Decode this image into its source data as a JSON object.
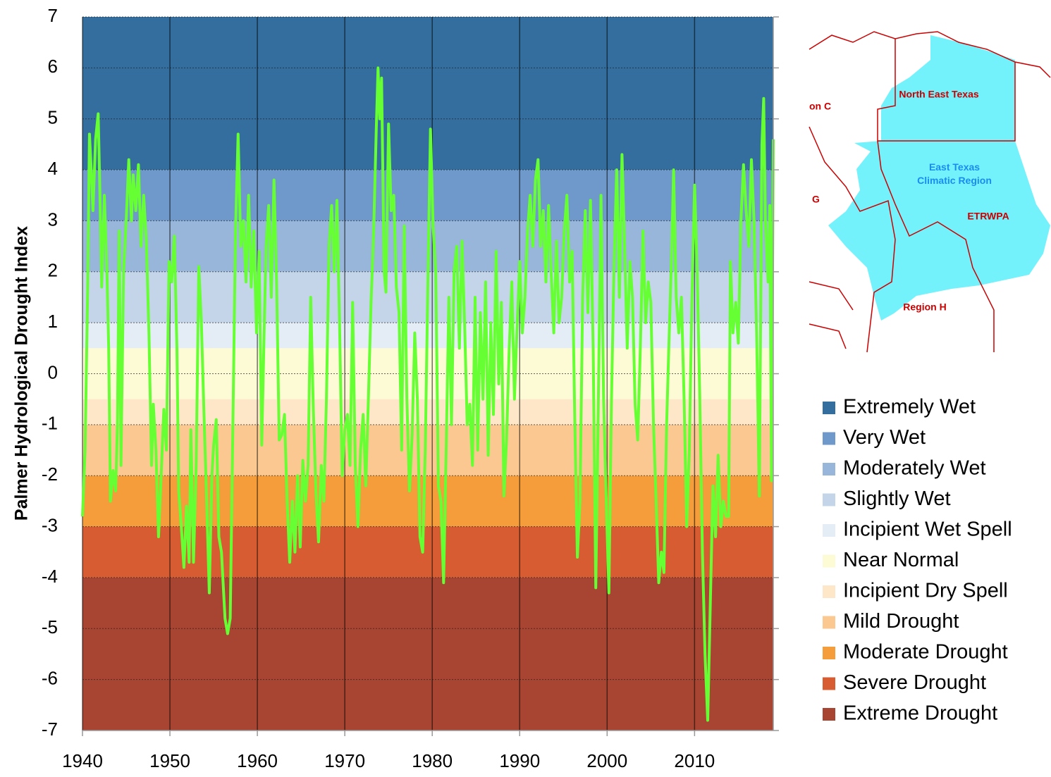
{
  "chart_data": {
    "type": "line",
    "ylabel": "Palmer Hydrological Drought Index",
    "xlim": [
      1940,
      2019
    ],
    "xticks": [
      1940,
      1950,
      1960,
      1970,
      1980,
      1990,
      2000,
      2010
    ],
    "ylim": [
      -7,
      7
    ],
    "yticks": [
      -7,
      -6,
      -5,
      -4,
      -3,
      -2,
      -1,
      0,
      1,
      2,
      3,
      4,
      5,
      6,
      7
    ],
    "grid": true,
    "line_color": "#66ff33",
    "bands": [
      {
        "name": "Extremely Wet",
        "color": "#336e9e",
        "range": [
          4,
          7
        ]
      },
      {
        "name": "Very Wet",
        "color": "#7099cb",
        "range": [
          3,
          4
        ]
      },
      {
        "name": "Moderately Wet",
        "color": "#98b5da",
        "range": [
          2,
          3
        ]
      },
      {
        "name": "Slightly Wet",
        "color": "#c4d5e9",
        "range": [
          1,
          2
        ]
      },
      {
        "name": "Incipient Wet Spell",
        "color": "#e4edf5",
        "range": [
          0.5,
          1
        ]
      },
      {
        "name": "Near Normal",
        "color": "#fdfbd5",
        "range": [
          -0.5,
          0.5
        ]
      },
      {
        "name": "Incipient Dry Spell",
        "color": "#fde7c8",
        "range": [
          -1,
          -0.5
        ]
      },
      {
        "name": "Mild Drought",
        "color": "#fbc891",
        "range": [
          -2,
          -1
        ]
      },
      {
        "name": "Moderate Drought",
        "color": "#f59c3b",
        "range": [
          -3,
          -2
        ]
      },
      {
        "name": "Severe Drought",
        "color": "#d85c31",
        "range": [
          -4,
          -3
        ]
      },
      {
        "name": "Extreme Drought",
        "color": "#a84532",
        "range": [
          -7,
          -4
        ]
      }
    ],
    "x": [
      1940.0,
      1940.3,
      1940.6,
      1940.8,
      1941.0,
      1941.2,
      1941.5,
      1941.8,
      1942.0,
      1942.2,
      1942.5,
      1942.8,
      1943.0,
      1943.2,
      1943.5,
      1943.8,
      1944.0,
      1944.2,
      1944.4,
      1944.7,
      1945.0,
      1945.3,
      1945.6,
      1945.8,
      1946.1,
      1946.4,
      1946.7,
      1947.0,
      1947.3,
      1947.6,
      1947.9,
      1948.1,
      1948.4,
      1948.7,
      1949.0,
      1949.3,
      1949.6,
      1949.9,
      1950.2,
      1950.5,
      1950.8,
      1951.0,
      1951.3,
      1951.6,
      1951.9,
      1952.2,
      1952.4,
      1952.7,
      1953.0,
      1953.3,
      1953.6,
      1953.9,
      1954.2,
      1954.5,
      1954.8,
      1955.0,
      1955.3,
      1955.6,
      1955.9,
      1956.3,
      1956.6,
      1956.9,
      1957.2,
      1957.5,
      1957.8,
      1958.1,
      1958.4,
      1958.7,
      1959.0,
      1959.3,
      1959.6,
      1959.9,
      1960.2,
      1960.5,
      1960.8,
      1961.0,
      1961.3,
      1961.6,
      1961.9,
      1962.2,
      1962.5,
      1962.8,
      1963.1,
      1963.4,
      1963.7,
      1964.0,
      1964.3,
      1964.6,
      1964.9,
      1965.2,
      1965.5,
      1965.8,
      1966.1,
      1966.4,
      1966.7,
      1967.0,
      1967.3,
      1967.6,
      1967.9,
      1968.2,
      1968.5,
      1968.8,
      1969.1,
      1969.4,
      1969.7,
      1970.0,
      1970.3,
      1970.6,
      1970.9,
      1971.2,
      1971.5,
      1971.8,
      1972.1,
      1972.4,
      1972.7,
      1973.0,
      1973.3,
      1973.6,
      1973.8,
      1974.0,
      1974.2,
      1974.5,
      1974.7,
      1975.0,
      1975.3,
      1975.6,
      1975.9,
      1976.2,
      1976.5,
      1976.8,
      1977.1,
      1977.4,
      1977.7,
      1978.0,
      1978.3,
      1978.6,
      1978.9,
      1979.2,
      1979.5,
      1979.8,
      1980.1,
      1980.4,
      1980.7,
      1981.0,
      1981.3,
      1981.6,
      1981.9,
      1982.2,
      1982.5,
      1982.8,
      1983.1,
      1983.4,
      1983.7,
      1984.0,
      1984.3,
      1984.6,
      1984.9,
      1985.2,
      1985.5,
      1985.8,
      1986.1,
      1986.4,
      1986.7,
      1987.0,
      1987.3,
      1987.6,
      1987.9,
      1988.2,
      1988.5,
      1988.8,
      1989.1,
      1989.4,
      1989.7,
      1990.0,
      1990.3,
      1990.6,
      1990.9,
      1991.2,
      1991.5,
      1991.8,
      1992.1,
      1992.4,
      1992.7,
      1993.0,
      1993.3,
      1993.6,
      1993.9,
      1994.2,
      1994.5,
      1994.8,
      1995.1,
      1995.4,
      1995.7,
      1996.0,
      1996.3,
      1996.6,
      1996.9,
      1997.2,
      1997.5,
      1997.8,
      1998.1,
      1998.4,
      1998.7,
      1999.0,
      1999.3,
      1999.6,
      1999.9,
      2000.2,
      2000.5,
      2000.8,
      2001.1,
      2001.4,
      2001.7,
      2002.0,
      2002.3,
      2002.6,
      2002.9,
      2003.2,
      2003.5,
      2003.8,
      2004.1,
      2004.4,
      2004.7,
      2005.0,
      2005.3,
      2005.6,
      2005.9,
      2006.2,
      2006.5,
      2006.8,
      2007.1,
      2007.4,
      2007.6,
      2007.9,
      2008.2,
      2008.5,
      2008.8,
      2009.1,
      2009.4,
      2009.7,
      2010.0,
      2010.3,
      2010.6,
      2010.9,
      2011.2,
      2011.5,
      2011.8,
      2012.1,
      2012.4,
      2012.7,
      2013.0,
      2013.3,
      2013.6,
      2013.9,
      2014.1,
      2014.4,
      2014.7,
      2015.0,
      2015.3,
      2015.6,
      2015.9,
      2016.2,
      2016.5,
      2016.8,
      2017.1,
      2017.4,
      2017.7,
      2017.9,
      2018.1,
      2018.4,
      2018.6,
      2018.8,
      2019.0
    ],
    "values": [
      -2.8,
      -1.5,
      1.7,
      4.7,
      4.0,
      3.2,
      4.6,
      5.1,
      3.5,
      1.7,
      3.5,
      2.0,
      0.5,
      -2.5,
      -1.9,
      -2.3,
      -1.0,
      2.8,
      -1.8,
      2.0,
      3.0,
      4.2,
      3.0,
      3.9,
      3.2,
      4.1,
      2.5,
      3.5,
      2.6,
      0.8,
      -1.8,
      -0.6,
      -1.5,
      -3.2,
      -2.0,
      -0.7,
      -1.5,
      2.2,
      1.8,
      2.7,
      0.5,
      -2.3,
      -3.0,
      -3.8,
      -2.6,
      -3.7,
      -1.1,
      -3.7,
      -1.8,
      2.1,
      1.0,
      -0.8,
      -2.5,
      -4.3,
      -2.0,
      -1.4,
      -0.9,
      -3.2,
      -3.5,
      -4.8,
      -5.1,
      -4.8,
      -1.0,
      2.8,
      4.7,
      2.5,
      3.0,
      1.8,
      3.5,
      1.7,
      2.8,
      0.8,
      2.4,
      -1.4,
      1.0,
      2.5,
      3.3,
      1.5,
      3.8,
      1.8,
      -1.3,
      -1.2,
      -0.8,
      -2.5,
      -3.7,
      -2.5,
      -3.5,
      -2.0,
      -3.4,
      -1.7,
      -2.5,
      -1.8,
      1.5,
      -0.7,
      -2.3,
      -3.3,
      -1.8,
      -2.5,
      -0.5,
      2.5,
      3.3,
      2.0,
      3.4,
      1.0,
      -2.0,
      -1.1,
      -0.8,
      -1.8,
      1.4,
      -1.8,
      -3.0,
      -1.5,
      -0.8,
      -2.2,
      -0.5,
      1.4,
      2.8,
      4.8,
      6.0,
      5.0,
      5.8,
      2.0,
      1.6,
      4.9,
      3.2,
      3.5,
      1.7,
      1.2,
      -1.5,
      2.9,
      -0.5,
      -2.3,
      -1.2,
      0.8,
      -0.5,
      -3.2,
      -3.5,
      -1.5,
      1.8,
      4.8,
      2.9,
      2.0,
      -2.2,
      -2.5,
      -4.1,
      -1.4,
      1.5,
      -1.0,
      2.0,
      2.5,
      0.5,
      2.6,
      1.0,
      -1.0,
      -0.6,
      -1.8,
      1.5,
      -1.5,
      1.2,
      -0.5,
      1.8,
      -1.6,
      1.0,
      -0.8,
      2.4,
      -0.2,
      1.4,
      -2.4,
      -1.3,
      0.5,
      1.8,
      -0.5,
      0.9,
      2.2,
      0.8,
      1.5,
      2.8,
      3.5,
      2.5,
      3.8,
      4.2,
      2.5,
      3.2,
      1.8,
      3.3,
      2.0,
      0.8,
      2.6,
      1.0,
      1.5,
      2.8,
      3.5,
      1.8,
      2.4,
      -0.9,
      -3.6,
      -2.5,
      1.5,
      3.2,
      1.2,
      3.4,
      0.5,
      -4.2,
      -0.5,
      3.5,
      -0.5,
      -2.5,
      -4.3,
      -0.5,
      2.2,
      4.0,
      1.5,
      4.3,
      2.5,
      0.5,
      2.2,
      1.5,
      -0.6,
      -1.3,
      0.5,
      2.8,
      1.0,
      1.8,
      1.4,
      -1.0,
      -2.5,
      -4.1,
      -3.5,
      -3.9,
      -1.0,
      0.8,
      2.5,
      4.0,
      1.5,
      0.8,
      1.5,
      -0.5,
      -3.0,
      -1.5,
      1.5,
      3.7,
      2.0,
      -0.5,
      -3.5,
      -5.5,
      -6.8,
      -4.5,
      -2.2,
      -3.2,
      -1.6,
      -3.0,
      -2.5,
      -2.8,
      -2.8,
      2.2,
      0.8,
      1.4,
      0.6,
      3.0,
      4.1,
      3.2,
      2.5,
      4.2,
      3.0,
      0.8,
      -2.4,
      4.5,
      5.4,
      3.0,
      1.8,
      3.3,
      -2.1,
      4.6
    ]
  },
  "map": {
    "labels": [
      "North East Texas",
      "on C",
      "East Texas Climatic Region",
      "G",
      "ETRWPA",
      "Region H"
    ]
  }
}
